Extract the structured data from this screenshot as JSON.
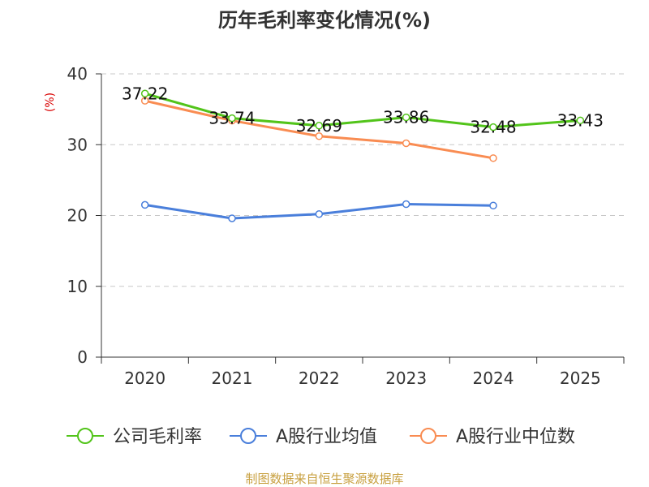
{
  "chart_data": {
    "type": "line",
    "title": "历年毛利率变化情况(%)",
    "ylabel": "(%)",
    "xlabel": "",
    "categories": [
      "2020",
      "2021",
      "2022",
      "2023",
      "2024",
      "2025"
    ],
    "ylim": [
      0,
      40
    ],
    "yticks": [
      0,
      10,
      20,
      30,
      40
    ],
    "grid": true,
    "legend_position": "bottom",
    "series": [
      {
        "name": "公司毛利率",
        "values": [
          37.22,
          33.74,
          32.69,
          33.86,
          32.48,
          33.43
        ],
        "labels": [
          "37.22",
          "33.74",
          "32.69",
          "33.86",
          "32.48",
          "33.43"
        ],
        "color": "#52c41a"
      },
      {
        "name": "A股行业均值",
        "values": [
          21.5,
          19.6,
          20.2,
          21.6,
          21.4,
          null
        ],
        "color": "#4a7fdb"
      },
      {
        "name": "A股行业中位数",
        "values": [
          36.2,
          33.4,
          31.2,
          30.2,
          28.1,
          null
        ],
        "color": "#f98c52"
      }
    ]
  },
  "footer": {
    "source": "制图数据来自恒生聚源数据库"
  }
}
